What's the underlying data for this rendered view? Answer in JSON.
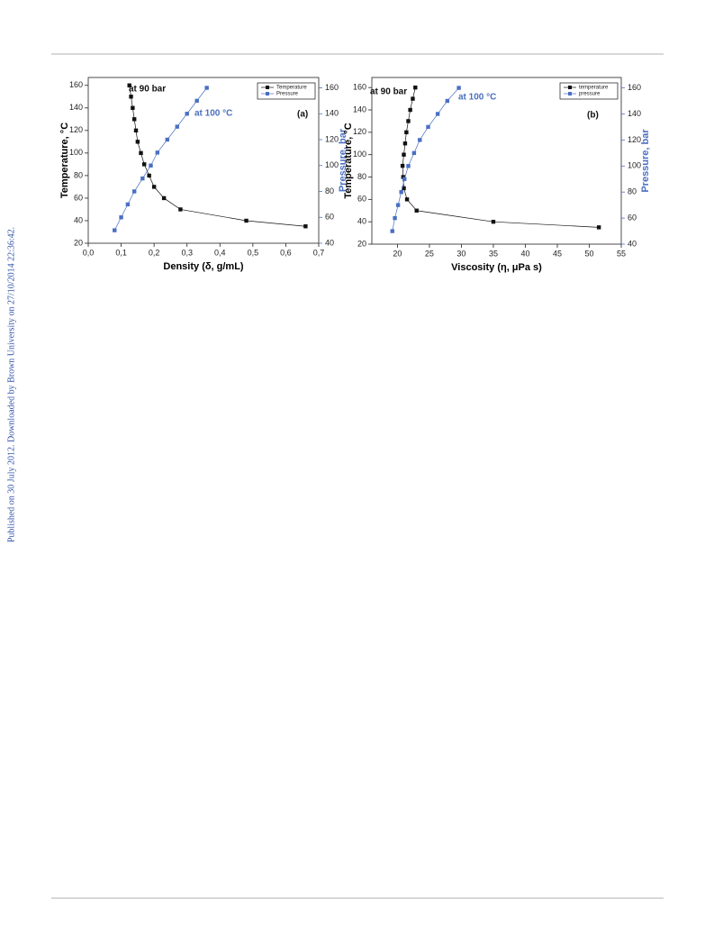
{
  "side_note": "Published on 30 July 2012. Downloaded by Brown University on 27/10/2014 22:36:42.",
  "chart_data": [
    {
      "type": "line",
      "xlabel": "Density (δ, g/mL)",
      "ylabel": "Temperature, °C",
      "y2label": "Pressure, bar",
      "xlim": [
        0,
        0.7
      ],
      "xticks": [
        {
          "value": 0,
          "label": "0,0"
        },
        {
          "value": 0.1,
          "label": "0,1"
        },
        {
          "value": 0.2,
          "label": "0,2"
        },
        {
          "value": 0.3,
          "label": "0,3"
        },
        {
          "value": 0.4,
          "label": "0,4"
        },
        {
          "value": 0.5,
          "label": "0,5"
        },
        {
          "value": 0.6,
          "label": "0,6"
        },
        {
          "value": 0.7,
          "label": "0,7"
        }
      ],
      "ylim": [
        20,
        167
      ],
      "yticks": [
        20,
        40,
        60,
        80,
        100,
        120,
        140,
        160
      ],
      "y2lim": [
        40,
        168
      ],
      "y2ticks": [
        40,
        60,
        80,
        100,
        120,
        140,
        160
      ],
      "series": [
        {
          "name": "Temperature",
          "color": "#111111",
          "x": [
            0.125,
            0.13,
            0.135,
            0.14,
            0.145,
            0.15,
            0.16,
            0.17,
            0.185,
            0.2,
            0.23,
            0.28,
            0.48,
            0.66
          ],
          "values": [
            160,
            150,
            140,
            130,
            120,
            110,
            100,
            90,
            80,
            70,
            60,
            50,
            40,
            35
          ]
        },
        {
          "name": "Pressure",
          "color": "#4a6fc2",
          "axis": "y2",
          "x": [
            0.08,
            0.1,
            0.12,
            0.14,
            0.165,
            0.19,
            0.21,
            0.24,
            0.27,
            0.3,
            0.33,
            0.36
          ],
          "values": [
            50,
            60,
            70,
            80,
            90,
            100,
            110,
            120,
            130,
            140,
            150,
            160
          ]
        }
      ],
      "annotations": [
        {
          "text": "at 90 bar",
          "color": "#111111"
        },
        {
          "text": "at 100 °C",
          "color": "#4a6fc2"
        },
        {
          "text": "(a)",
          "color": "#111111"
        }
      ]
    },
    {
      "type": "line",
      "xlabel": "Viscosity (η, μPa s)",
      "ylabel": "Temperature, °C",
      "y2label": "Pressure, bar",
      "xlim": [
        16,
        55
      ],
      "xticks": [
        20,
        25,
        30,
        35,
        40,
        45,
        50,
        55
      ],
      "ylim": [
        20,
        169
      ],
      "yticks": [
        20,
        40,
        60,
        80,
        100,
        120,
        140,
        160
      ],
      "y2lim": [
        40,
        168
      ],
      "y2ticks": [
        40,
        60,
        80,
        100,
        120,
        140,
        160
      ],
      "series": [
        {
          "name": "temperature",
          "color": "#111111",
          "x": [
            22.8,
            22.4,
            22,
            21.7,
            21.4,
            21.2,
            21,
            20.8,
            20.9,
            21,
            21.5,
            23,
            35,
            51.5
          ],
          "values": [
            160,
            150,
            140,
            130,
            120,
            110,
            100,
            90,
            80,
            70,
            60,
            50,
            40,
            35
          ]
        },
        {
          "name": "pressure",
          "color": "#4a6fc2",
          "axis": "y2",
          "x": [
            19.2,
            19.6,
            20.1,
            20.6,
            21.1,
            21.7,
            22.6,
            23.5,
            24.8,
            26.3,
            27.8,
            29.6
          ],
          "values": [
            50,
            60,
            70,
            80,
            90,
            100,
            110,
            120,
            130,
            140,
            150,
            160
          ]
        }
      ],
      "annotations": [
        {
          "text": "at 90 bar",
          "color": "#111111"
        },
        {
          "text": "at 100 °C",
          "color": "#4a6fc2"
        },
        {
          "text": "(b)",
          "color": "#111111"
        }
      ]
    }
  ]
}
